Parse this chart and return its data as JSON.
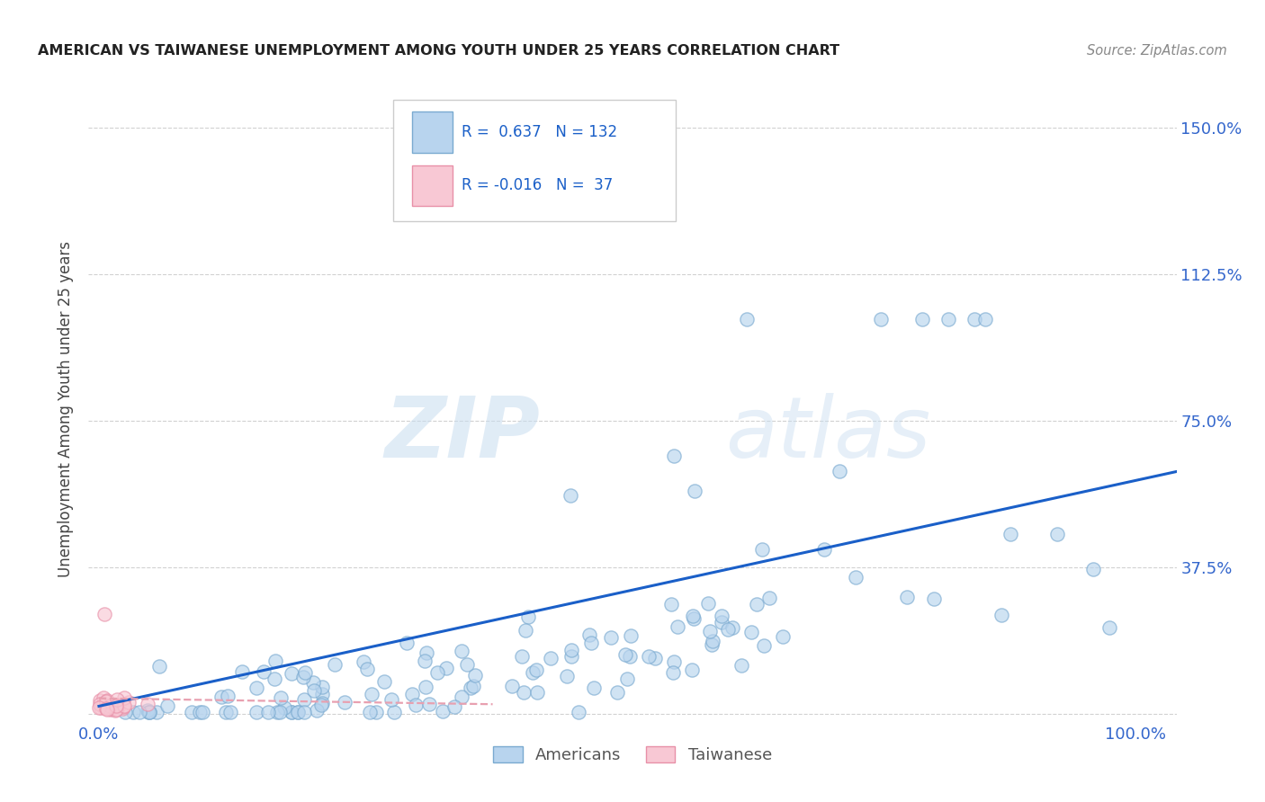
{
  "title": "AMERICAN VS TAIWANESE UNEMPLOYMENT AMONG YOUTH UNDER 25 YEARS CORRELATION CHART",
  "source": "Source: ZipAtlas.com",
  "ylabel_label": "Unemployment Among Youth under 25 years",
  "watermark_zip": "ZIP",
  "watermark_atlas": "atlas",
  "background_color": "#ffffff",
  "grid_color": "#cccccc",
  "american_line_color": "#1a5fc8",
  "taiwanese_line_color": "#e8a0b0",
  "american_scatter_facecolor": "#b8d4ee",
  "american_scatter_edgecolor": "#7aaad0",
  "taiwanese_scatter_facecolor": "#f8c8d4",
  "taiwanese_scatter_edgecolor": "#e890a8",
  "title_color": "#222222",
  "axis_label_color": "#444444",
  "tick_label_color": "#3366cc",
  "source_color": "#888888",
  "legend_R_N_color": "#1a5fc8",
  "legend_border_color": "#cccccc",
  "bottom_legend_text_color": "#555555",
  "ytick_vals": [
    0.0,
    0.375,
    0.75,
    1.125,
    1.5
  ],
  "ytick_labels": [
    "",
    "37.5%",
    "75.0%",
    "112.5%",
    "150.0%"
  ],
  "xtick_vals": [
    0.0,
    1.0
  ],
  "xtick_labels": [
    "0.0%",
    "100.0%"
  ],
  "xlim": [
    -0.01,
    1.04
  ],
  "ylim": [
    -0.02,
    1.58
  ],
  "am_line_x": [
    0.0,
    1.04
  ],
  "am_line_y": [
    0.02,
    0.62
  ],
  "tw_line_x": [
    0.0,
    0.38
  ],
  "tw_line_y": [
    0.04,
    0.025
  ],
  "scatter_size": 120,
  "scatter_alpha": 0.65,
  "scatter_linewidth": 1.0
}
